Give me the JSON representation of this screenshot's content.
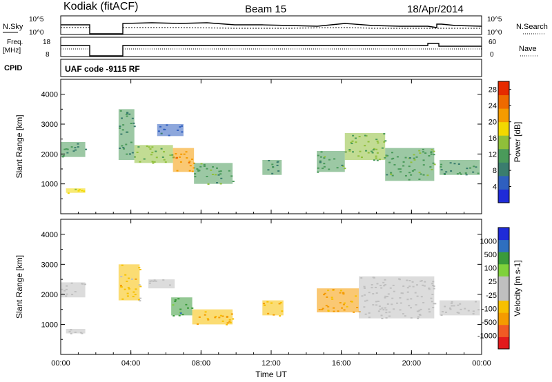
{
  "header": {
    "station": "Kodiak (fitACF)",
    "beam": "Beam 15",
    "date": "18/Apr/2014"
  },
  "strip_labels": {
    "nsky": "N.Sky",
    "nsky_top": "10^5",
    "nsky_bottom": "10^0",
    "nsearch": "N.Search",
    "nsearch_top": "10^5",
    "nsearch_bottom": "10^0",
    "freq_line1": "Freq.",
    "freq_line2": "[MHz]",
    "freq_top": "18",
    "freq_bottom": "8",
    "nave": "Nave",
    "nave_top": "60",
    "nave_bottom": "0",
    "cpid": "CPID",
    "cpid_value": "UAF code -9115 RF"
  },
  "colors": {
    "power_scale": [
      "#1f2bd8",
      "#2f5fbf",
      "#3a7d6e",
      "#4a9a5a",
      "#8fbf3a",
      "#f2d800",
      "#f59b00",
      "#ee6a00",
      "#e62a00"
    ],
    "velocity_scale": [
      "#e31a1c",
      "#f15a24",
      "#f59b00",
      "#f7c000",
      "#bfbfbf",
      "#bfbfbf",
      "#7fd13b",
      "#3a9b3a",
      "#2f6fbf",
      "#1f2bd8"
    ]
  },
  "chart_data": [
    {
      "type": "heatmap",
      "name": "power",
      "xlabel": "",
      "ylabel": "Slant Range [km]",
      "xlim_hours": [
        0,
        24
      ],
      "ylim_km": [
        0,
        4500
      ],
      "yticks": [
        "1000",
        "2000",
        "3000",
        "4000"
      ],
      "colorbar": {
        "label": "Power [dB]",
        "ticks": [
          "4",
          "8",
          "12",
          "16",
          "20",
          "24",
          "28"
        ],
        "range": [
          0,
          30
        ]
      },
      "echo_regions": [
        {
          "t": [
            0.0,
            1.4
          ],
          "r": [
            1900,
            2400
          ],
          "value": 10
        },
        {
          "t": [
            0.3,
            1.4
          ],
          "r": [
            700,
            850
          ],
          "value": 18
        },
        {
          "t": [
            3.3,
            4.2
          ],
          "r": [
            1800,
            3500
          ],
          "value": 10
        },
        {
          "t": [
            4.2,
            6.4
          ],
          "r": [
            1700,
            2300
          ],
          "value": 14
        },
        {
          "t": [
            5.5,
            7.0
          ],
          "r": [
            2600,
            3000
          ],
          "value": 6
        },
        {
          "t": [
            6.4,
            7.6
          ],
          "r": [
            1400,
            2200
          ],
          "value": 22
        },
        {
          "t": [
            7.6,
            9.8
          ],
          "r": [
            1000,
            1700
          ],
          "value": 12
        },
        {
          "t": [
            11.5,
            12.6
          ],
          "r": [
            1300,
            1800
          ],
          "value": 10
        },
        {
          "t": [
            14.6,
            16.2
          ],
          "r": [
            1400,
            2100
          ],
          "value": 12
        },
        {
          "t": [
            16.2,
            18.5
          ],
          "r": [
            1800,
            2700
          ],
          "value": 14
        },
        {
          "t": [
            18.5,
            21.3
          ],
          "r": [
            1100,
            2200
          ],
          "value": 12
        },
        {
          "t": [
            21.6,
            23.9
          ],
          "r": [
            1300,
            1800
          ],
          "value": 10
        }
      ]
    },
    {
      "type": "heatmap",
      "name": "velocity",
      "xlabel": "Time UT",
      "ylabel": "Slant Range [km]",
      "xlim_hours": [
        0,
        24
      ],
      "ylim_km": [
        0,
        4500
      ],
      "yticks": [
        "1000",
        "2000",
        "3000",
        "4000"
      ],
      "xticks": [
        "00:00",
        "04:00",
        "08:00",
        "12:00",
        "16:00",
        "20:00",
        "00:00"
      ],
      "colorbar": {
        "label": "Velocity [m s-1]",
        "ticks": [
          "1000",
          "500",
          "100",
          "25",
          "-25",
          "-100",
          "-500",
          "-1000"
        ],
        "range": [
          -1000,
          1000
        ]
      },
      "echo_regions": [
        {
          "t": [
            0.0,
            1.4
          ],
          "r": [
            1900,
            2400
          ],
          "value": 0
        },
        {
          "t": [
            0.3,
            1.4
          ],
          "r": [
            700,
            850
          ],
          "value": 0
        },
        {
          "t": [
            3.3,
            4.5
          ],
          "r": [
            1800,
            3000
          ],
          "value": -300
        },
        {
          "t": [
            5.0,
            6.5
          ],
          "r": [
            2200,
            2500
          ],
          "value": 0
        },
        {
          "t": [
            6.3,
            7.5
          ],
          "r": [
            1300,
            1900
          ],
          "value": 500
        },
        {
          "t": [
            7.5,
            9.8
          ],
          "r": [
            1000,
            1500
          ],
          "value": -400
        },
        {
          "t": [
            11.5,
            12.7
          ],
          "r": [
            1300,
            1800
          ],
          "value": -400
        },
        {
          "t": [
            14.6,
            17.0
          ],
          "r": [
            1400,
            2200
          ],
          "value": -450
        },
        {
          "t": [
            17.0,
            21.3
          ],
          "r": [
            1200,
            2600
          ],
          "value": 0
        },
        {
          "t": [
            21.6,
            23.9
          ],
          "r": [
            1300,
            1800
          ],
          "value": 0
        }
      ]
    }
  ]
}
